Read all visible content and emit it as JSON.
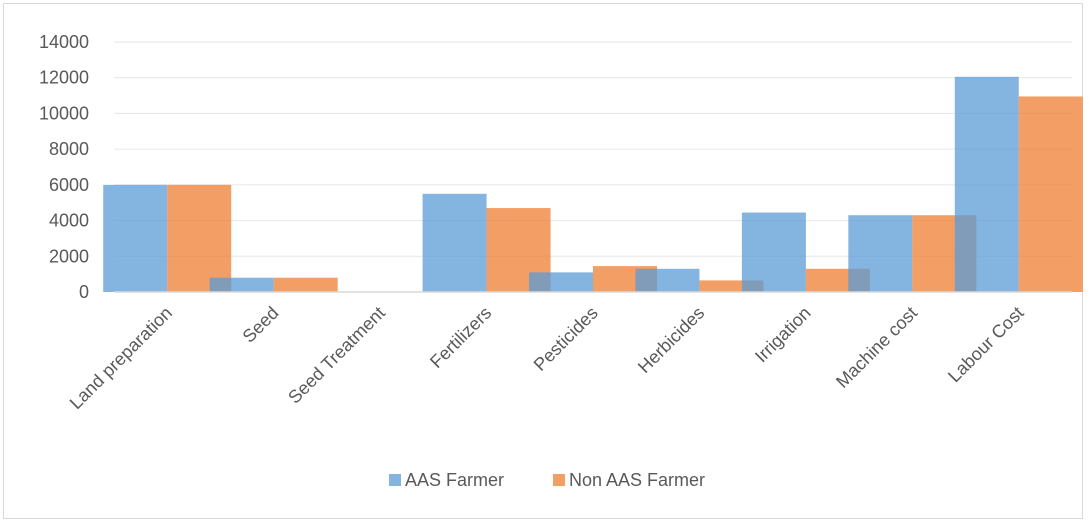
{
  "chart_data": {
    "type": "bar",
    "categories": [
      "Land preparation",
      "Seed",
      "Seed Treatment",
      "Fertilizers",
      "Pesticides",
      "Herbicides",
      "Irrigation",
      "Machine cost",
      "Labour Cost"
    ],
    "series": [
      {
        "name": "AAS Farmer",
        "color": "#5b9bd5",
        "values": [
          6000,
          800,
          0,
          5500,
          1100,
          1300,
          4450,
          4300,
          12050
        ]
      },
      {
        "name": "Non AAS Farmer",
        "color": "#ed7d31",
        "values": [
          6000,
          800,
          0,
          4700,
          1450,
          650,
          1300,
          4300,
          10950
        ]
      }
    ],
    "y_ticks": [
      "0",
      "2000",
      "4000",
      "6000",
      "8000",
      "10000",
      "12000",
      "14000"
    ],
    "ylim": [
      0,
      14000
    ],
    "grid": true,
    "legend_position": "bottom"
  }
}
